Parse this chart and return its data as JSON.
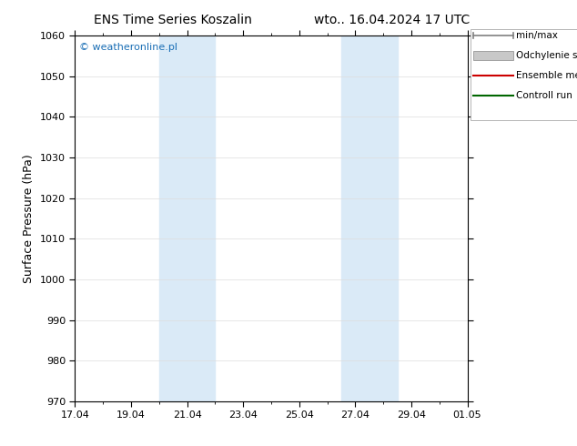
{
  "title_left": "ENS Time Series Koszalin",
  "title_right": "wto.. 16.04.2024 17 UTC",
  "ylabel": "Surface Pressure (hPa)",
  "ylim": [
    970,
    1060
  ],
  "yticks": [
    970,
    980,
    990,
    1000,
    1010,
    1020,
    1030,
    1040,
    1050,
    1060
  ],
  "x_tick_labels": [
    "17.04",
    "19.04",
    "21.04",
    "23.04",
    "25.04",
    "27.04",
    "29.04",
    "01.05"
  ],
  "x_tick_positions": [
    0,
    2,
    4,
    6,
    8,
    10,
    12,
    14
  ],
  "shaded_regions": [
    {
      "x_start": 3.0,
      "x_end": 5.0,
      "color": "#daeaf7"
    },
    {
      "x_start": 9.5,
      "x_end": 11.5,
      "color": "#daeaf7"
    }
  ],
  "watermark_text": "© weatheronline.pl",
  "watermark_color": "#1a6eb5",
  "legend_items": [
    {
      "label": "min/max",
      "color": "#808080"
    },
    {
      "label": "Odchylenie standardowe",
      "color": "#c8c8c8"
    },
    {
      "label": "Ensemble mean run",
      "color": "#cc0000"
    },
    {
      "label": "Controll run",
      "color": "#006600"
    }
  ],
  "background_color": "#ffffff",
  "tick_fontsize": 8,
  "label_fontsize": 9,
  "title_fontsize": 10
}
